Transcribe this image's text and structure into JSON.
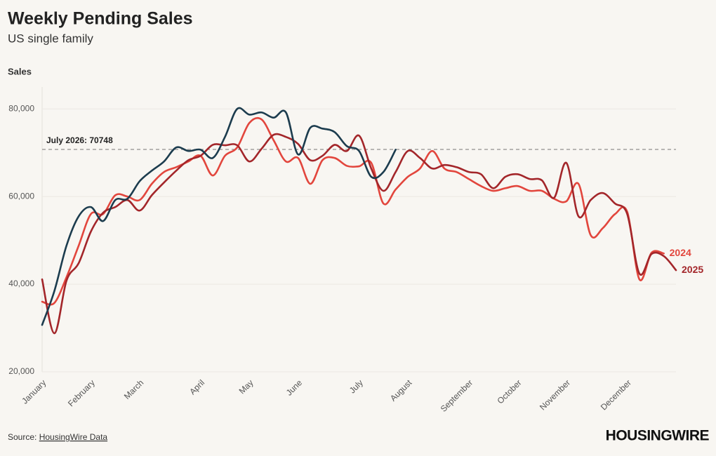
{
  "chart_data": {
    "type": "line",
    "title": "Weekly Pending Sales",
    "subtitle": "US single family",
    "y_label": "Sales",
    "source_prefix": "Source:",
    "source_link": "HousingWire Data",
    "brand": "HOUSINGWIRE",
    "categories": [
      "January",
      null,
      null,
      null,
      "February",
      null,
      null,
      null,
      "March",
      null,
      null,
      null,
      null,
      "April",
      null,
      null,
      null,
      "May",
      null,
      null,
      null,
      "June",
      null,
      null,
      null,
      null,
      "July",
      null,
      null,
      null,
      "August",
      null,
      null,
      null,
      null,
      "September",
      null,
      null,
      null,
      "October",
      null,
      null,
      null,
      "November",
      null,
      null,
      null,
      null,
      "December",
      null,
      null,
      null,
      null
    ],
    "series": [
      {
        "name": "2024",
        "color": "#e2463d",
        "values": [
          36000,
          35700,
          41600,
          48800,
          56000,
          56000,
          60300,
          60000,
          59200,
          62900,
          65600,
          66700,
          68000,
          69300,
          64800,
          69300,
          71200,
          76800,
          77600,
          72800,
          68000,
          68800,
          62900,
          68300,
          68800,
          67000,
          66900,
          67700,
          58400,
          61600,
          64500,
          66400,
          70400,
          66400,
          65600,
          64000,
          62400,
          61300,
          61900,
          62400,
          61300,
          61300,
          59500,
          58900,
          62900,
          51200,
          52800,
          56000,
          56500,
          41100,
          47200,
          47000,
          null
        ]
      },
      {
        "name": "2025",
        "color": "#a3262a",
        "values": [
          41100,
          28800,
          40800,
          44800,
          52000,
          56300,
          57600,
          59200,
          56800,
          60300,
          63200,
          65900,
          68300,
          69300,
          71800,
          71700,
          71700,
          68000,
          70900,
          74100,
          73600,
          72000,
          68300,
          69300,
          71800,
          70400,
          73900,
          66400,
          61300,
          65600,
          70400,
          68800,
          66400,
          67200,
          66700,
          65600,
          65100,
          61900,
          64500,
          65100,
          64000,
          63700,
          59700,
          67700,
          55500,
          59200,
          60800,
          58400,
          56000,
          42400,
          46900,
          46400,
          43200
        ]
      },
      {
        "color": "#1c3c4e",
        "values": [
          30700,
          38400,
          48800,
          55500,
          57600,
          54400,
          59200,
          59500,
          63500,
          65900,
          68000,
          71200,
          70400,
          70700,
          68800,
          73600,
          80000,
          78700,
          79200,
          78000,
          79200,
          69600,
          75700,
          75500,
          74700,
          71500,
          70400,
          64500,
          65600,
          70700,
          null,
          null,
          null,
          null,
          null,
          null,
          null,
          null,
          null,
          null,
          null,
          null,
          null,
          null,
          null,
          null,
          null,
          null,
          null,
          null,
          null,
          null,
          null
        ]
      }
    ],
    "reference": {
      "value": 70748,
      "label": "July 2026: 70748"
    },
    "ylim": [
      20000,
      85000
    ],
    "yticks": [
      {
        "value": 20000,
        "label": "20,000"
      },
      {
        "value": 40000,
        "label": "40,000"
      },
      {
        "value": 60000,
        "label": "60,000"
      },
      {
        "value": 80000,
        "label": "80,000"
      }
    ],
    "grid": true
  }
}
